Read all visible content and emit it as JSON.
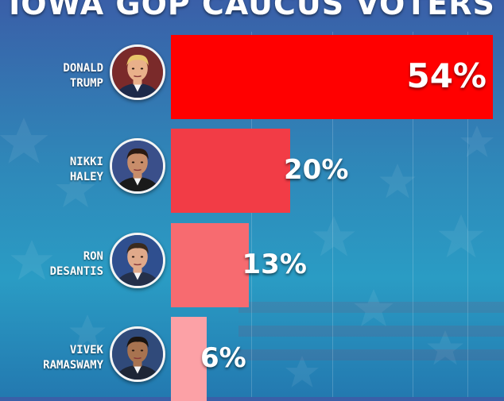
{
  "title": "IOWA GOP CAUCUS VOTERS",
  "colors": {
    "background_top": "#3a5fa8",
    "background_bottom": "#2379b0",
    "bar_trump": "#ff0000",
    "bar_haley": "#f23c46",
    "bar_desantis": "#f76b70",
    "bar_ramaswamy": "#fca1a6"
  },
  "chart_data": {
    "type": "bar",
    "orientation": "horizontal",
    "title": "IOWA GOP CAUCUS VOTERS",
    "categories": [
      "DONALD TRUMP",
      "NIKKI HALEY",
      "RON DESANTIS",
      "VIVEK RAMASWAMY"
    ],
    "candidates": [
      {
        "first": "DONALD",
        "last": "TRUMP",
        "value": 54,
        "label": "54%",
        "color": "#ff0000"
      },
      {
        "first": "NIKKI",
        "last": "HALEY",
        "value": 20,
        "label": "20%",
        "color": "#f23c46"
      },
      {
        "first": "RON",
        "last": "DESANTIS",
        "value": 13,
        "label": "13%",
        "color": "#f76b70"
      },
      {
        "first": "VIVEK",
        "last": "RAMASWAMY",
        "value": 6,
        "label": "6%",
        "color": "#fca1a6"
      }
    ],
    "values": [
      54,
      20,
      13,
      6
    ],
    "unit": "%",
    "xlim": [
      0,
      54
    ],
    "grid": true,
    "legend": "none"
  }
}
